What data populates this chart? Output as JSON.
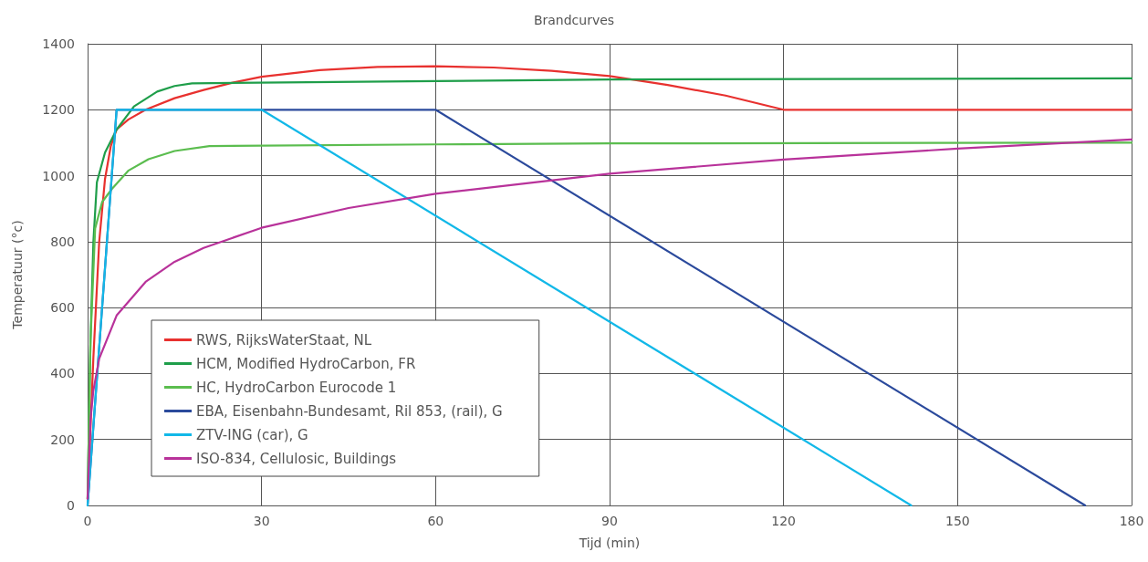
{
  "chart_data": {
    "type": "line",
    "title": "Brandcurves",
    "xlabel": "Tijd (min)",
    "ylabel": "Temperatuur (°c)",
    "xlim": [
      0,
      180
    ],
    "xticks": [
      0,
      30,
      60,
      90,
      120,
      150,
      180
    ],
    "ylim": [
      0,
      1400
    ],
    "yticks": [
      0,
      200,
      400,
      600,
      800,
      1000,
      1200,
      1400
    ],
    "grid": true,
    "legend": "bottom left",
    "marker": "none",
    "line_style": "solid",
    "series": [
      {
        "name": "RWS, RijksWaterStaat, NL",
        "color": "#e8312f",
        "x": [
          0,
          1,
          2,
          3,
          4,
          5,
          7,
          10,
          15,
          20,
          25,
          30,
          40,
          50,
          60,
          70,
          80,
          90,
          100,
          110,
          120,
          180
        ],
        "values": [
          20,
          450,
          800,
          990,
          1090,
          1140,
          1170,
          1200,
          1235,
          1260,
          1282,
          1300,
          1320,
          1330,
          1332,
          1328,
          1318,
          1302,
          1275,
          1243,
          1200,
          1200
        ]
      },
      {
        "name": "HCM, Modified HydroCarbon, FR",
        "color": "#1f9e4a",
        "x": [
          0,
          0.5,
          1,
          1.6,
          3,
          5,
          8,
          12,
          15,
          18,
          60,
          90,
          180
        ],
        "values": [
          20,
          500,
          800,
          980,
          1070,
          1140,
          1210,
          1255,
          1272,
          1280,
          1287,
          1292,
          1295
        ]
      },
      {
        "name": "HC, HydroCarbon Eurocode 1",
        "color": "#5bbd4f",
        "x": [
          0,
          0.5,
          1.3,
          2.5,
          4.2,
          7,
          10.5,
          15,
          21,
          60,
          90,
          180
        ],
        "values": [
          20,
          500,
          840,
          920,
          960,
          1015,
          1050,
          1075,
          1090,
          1095,
          1098,
          1100
        ]
      },
      {
        "name": "EBA, Eisenbahn-Bundesamt, Ril 853, (rail), G",
        "color": "#2b4a9c",
        "x": [
          0,
          5,
          60,
          172
        ],
        "values": [
          0,
          1200,
          1200,
          0
        ]
      },
      {
        "name": "ZTV-ING (car), G",
        "color": "#12b8e8",
        "x": [
          0,
          5,
          30,
          142
        ],
        "values": [
          0,
          1200,
          1200,
          0
        ]
      },
      {
        "name": "ISO-834, Cellulosic, Buildings",
        "color": "#b8329a",
        "x": [
          0,
          0.5,
          1,
          2,
          5,
          10,
          15,
          20,
          30,
          45,
          60,
          90,
          120,
          150,
          180
        ],
        "values": [
          20,
          261,
          349,
          445,
          576,
          678,
          739,
          781,
          842,
          902,
          945,
          1006,
          1049,
          1082,
          1110
        ]
      }
    ]
  }
}
